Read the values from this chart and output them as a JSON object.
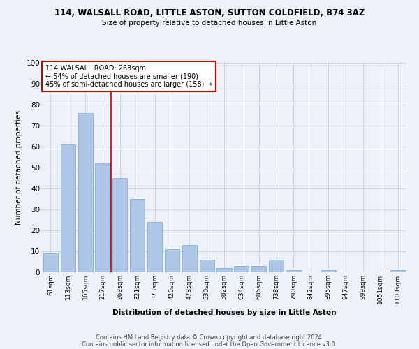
{
  "title": "114, WALSALL ROAD, LITTLE ASTON, SUTTON COLDFIELD, B74 3AZ",
  "subtitle": "Size of property relative to detached houses in Little Aston",
  "xlabel": "Distribution of detached houses by size in Little Aston",
  "ylabel": "Number of detached properties",
  "categories": [
    "61sqm",
    "113sqm",
    "165sqm",
    "217sqm",
    "269sqm",
    "321sqm",
    "373sqm",
    "426sqm",
    "478sqm",
    "530sqm",
    "582sqm",
    "634sqm",
    "686sqm",
    "738sqm",
    "790sqm",
    "842sqm",
    "895sqm",
    "947sqm",
    "999sqm",
    "1051sqm",
    "1103sqm"
  ],
  "values": [
    9,
    61,
    76,
    52,
    45,
    35,
    24,
    11,
    13,
    6,
    2,
    3,
    3,
    6,
    1,
    0,
    1,
    0,
    0,
    0,
    1
  ],
  "bar_color": "#aec6e8",
  "bar_edge_color": "#7bafd4",
  "grid_color": "#c8d8ea",
  "background_color": "#eef2f8",
  "vline_color": "#cc0000",
  "vline_x_idx": 3,
  "annotation_text": "114 WALSALL ROAD: 263sqm\n← 54% of detached houses are smaller (190)\n45% of semi-detached houses are larger (158) →",
  "annotation_box_color": "#ffffff",
  "annotation_box_edge_color": "#cc0000",
  "ylim": [
    0,
    100
  ],
  "yticks": [
    0,
    10,
    20,
    30,
    40,
    50,
    60,
    70,
    80,
    90,
    100
  ],
  "footer1": "Contains HM Land Registry data © Crown copyright and database right 2024.",
  "footer2": "Contains public sector information licensed under the Open Government Licence v3.0."
}
